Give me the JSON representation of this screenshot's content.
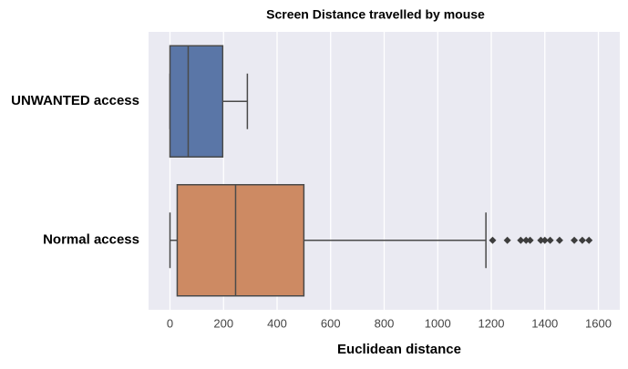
{
  "chart_data": {
    "type": "box",
    "orientation": "horizontal",
    "title": "Screen Distance travelled by mouse",
    "x_label": "Euclidean distance",
    "categories": [
      "UNWANTED access",
      "Normal access"
    ],
    "colors": [
      "#5a76a7",
      "#cd8a63"
    ],
    "whislo": [
      0,
      0
    ],
    "q1": [
      0,
      27
    ],
    "med": [
      68,
      245
    ],
    "q3": [
      197,
      500
    ],
    "whishi": [
      289,
      1180
    ],
    "fliers": [
      [],
      [
        1205,
        1260,
        1310,
        1330,
        1345,
        1385,
        1400,
        1420,
        1455,
        1510,
        1540,
        1565
      ]
    ],
    "xlim": [
      -80,
      1680
    ],
    "xticks": [
      0,
      200,
      400,
      600,
      800,
      1000,
      1200,
      1400,
      1600
    ],
    "grid": true,
    "background": "#eaeaf2"
  }
}
